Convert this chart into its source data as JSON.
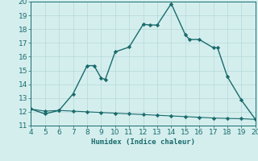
{
  "xlabel": "Humidex (Indice chaleur)",
  "xlim": [
    4,
    20
  ],
  "ylim": [
    11,
    20
  ],
  "xticks": [
    4,
    5,
    6,
    7,
    8,
    9,
    10,
    11,
    12,
    13,
    14,
    15,
    16,
    17,
    18,
    19,
    20
  ],
  "yticks": [
    11,
    12,
    13,
    14,
    15,
    16,
    17,
    18,
    19,
    20
  ],
  "line1_x": [
    4,
    5,
    6,
    7,
    8,
    8.5,
    9,
    9.3,
    10,
    11,
    12,
    12.5,
    13,
    14,
    15,
    15.3,
    16,
    17,
    17.3,
    18,
    19,
    20
  ],
  "line1_y": [
    12.2,
    11.85,
    12.1,
    13.3,
    15.35,
    15.35,
    14.45,
    14.35,
    16.35,
    16.7,
    18.35,
    18.3,
    18.3,
    19.85,
    17.6,
    17.25,
    17.25,
    16.65,
    16.65,
    14.55,
    12.85,
    11.45
  ],
  "line2_x": [
    4,
    5,
    6,
    7,
    8,
    9,
    10,
    11,
    12,
    13,
    14,
    15,
    16,
    17,
    18,
    19,
    20
  ],
  "line2_y": [
    12.2,
    12.05,
    12.1,
    12.05,
    12.0,
    11.95,
    11.9,
    11.85,
    11.8,
    11.75,
    11.7,
    11.65,
    11.6,
    11.55,
    11.52,
    11.5,
    11.45
  ],
  "line_color": "#1a6b6b",
  "bg_color": "#d4eeee",
  "grid_color": "#b8d8d8",
  "tick_color": "#1a6b6b",
  "label_fontsize": 6.5,
  "marker": "D",
  "marker_size": 2.2,
  "linewidth1": 1.0,
  "linewidth2": 0.8
}
